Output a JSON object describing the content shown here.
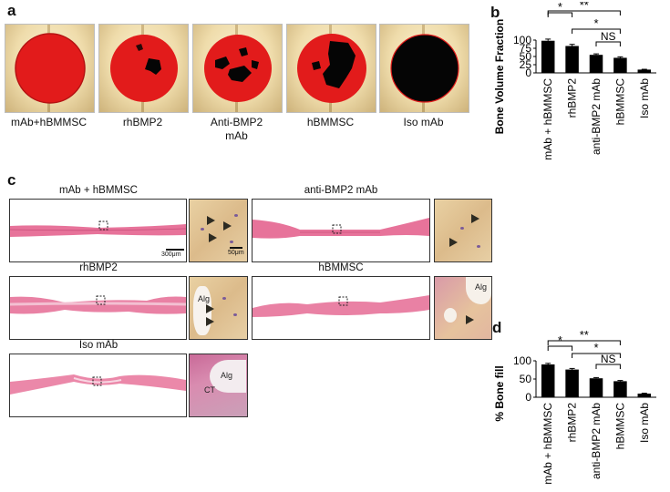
{
  "panel_letters": {
    "a": "a",
    "b": "b",
    "c": "c",
    "d": "d"
  },
  "panel_a": {
    "labels": [
      "mAb+hBMMSC",
      "rhBMP2",
      "Anti-BMP2\nmAb",
      "hBMMSC",
      "Iso mAb"
    ]
  },
  "panel_c": {
    "titles": [
      "mAb + hBMMSC",
      "anti-BMP2 mAb",
      "rhBMP2",
      "hBMMSC",
      "Iso mAb"
    ],
    "scale_main": "300μm",
    "scale_inset": "50μm",
    "inset_labels": {
      "alg_rh": "Alg",
      "alg_h": "Alg",
      "alg_iso": "Alg",
      "ct_iso": "CT"
    }
  },
  "colors": {
    "new_bone": "#e21b1b",
    "defect": "#050505",
    "bar": "#000000",
    "stain": "#e7739a"
  },
  "chart_data": [
    {
      "type": "bar",
      "panel": "b",
      "title": "",
      "ylabel": "Bone Volume Fraction",
      "xlabel": "",
      "categories": [
        "mAb + hBMMSC",
        "rhBMP2",
        "anti-BMP2 mAb",
        "hBMMSC",
        "Iso mAb"
      ],
      "values": [
        98,
        82,
        55,
        46,
        10
      ],
      "errors": [
        5,
        5,
        3,
        3,
        1
      ],
      "ylim": [
        0,
        100
      ],
      "yticks": [
        "0",
        "25",
        "50",
        "75",
        "100"
      ],
      "significance": [
        "*",
        "**",
        "NS",
        "*"
      ]
    },
    {
      "type": "bar",
      "panel": "d",
      "title": "",
      "ylabel": "% Bone fill",
      "xlabel": "",
      "categories": [
        "mAb + hBMMSC",
        "rhBMP2",
        "anti-BMP2 mAb",
        "hBMMSC",
        "Iso mAb"
      ],
      "values": [
        90,
        76,
        52,
        44,
        10
      ],
      "errors": [
        3,
        3,
        2,
        2,
        1
      ],
      "ylim": [
        0,
        100
      ],
      "yticks": [
        "0",
        "50",
        "100"
      ],
      "significance": [
        "*",
        "**",
        "NS",
        "*"
      ]
    }
  ]
}
